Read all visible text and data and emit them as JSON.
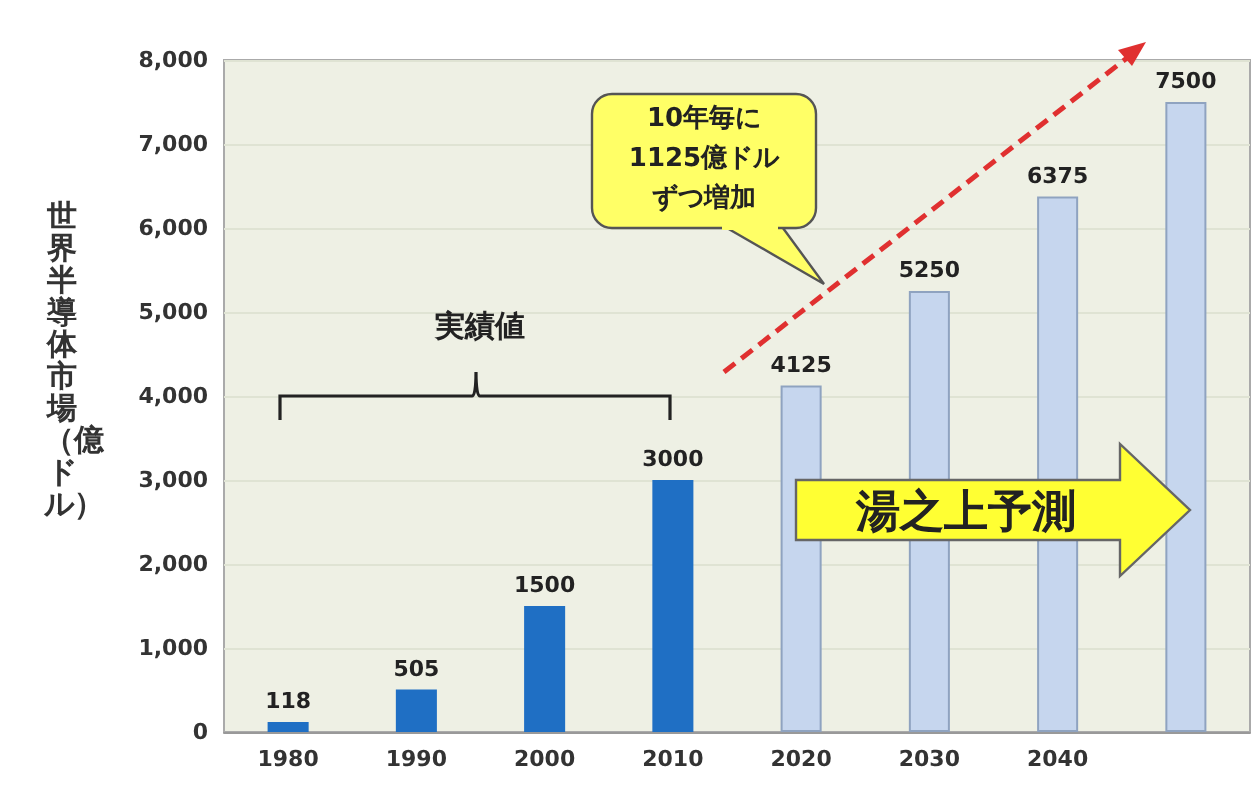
{
  "chart_data": {
    "type": "bar",
    "ylabel": "世界半導体市場（億ドル）",
    "categories": [
      "1980",
      "1990",
      "2000",
      "2010",
      "2020",
      "2030",
      "2040",
      null
    ],
    "values": [
      118,
      505,
      1500,
      3000,
      4125,
      5250,
      6375,
      7500
    ],
    "colors": [
      "#1f6fc4",
      "#1f6fc4",
      "#1f6fc4",
      "#1f6fc4",
      "#c6d6ee",
      "#c6d6ee",
      "#c6d6ee",
      "#c6d6ee"
    ],
    "ylim": [
      0,
      8000
    ],
    "yticks": [
      {
        "value": 0,
        "label": "0"
      },
      {
        "value": 1000,
        "label": "1,000"
      },
      {
        "value": 2000,
        "label": "2,000"
      },
      {
        "value": 3000,
        "label": "3,000"
      },
      {
        "value": 4000,
        "label": "4,000"
      },
      {
        "value": 5000,
        "label": "5,000"
      },
      {
        "value": 6000,
        "label": "6,000"
      },
      {
        "value": 7000,
        "label": "7,000"
      },
      {
        "value": 8000,
        "label": "8,000"
      }
    ],
    "grid": "y",
    "data_labels": true,
    "annotations": [
      "10年毎に1125億ドルずつ増加",
      "実績値",
      "湯之上予測"
    ]
  }
}
